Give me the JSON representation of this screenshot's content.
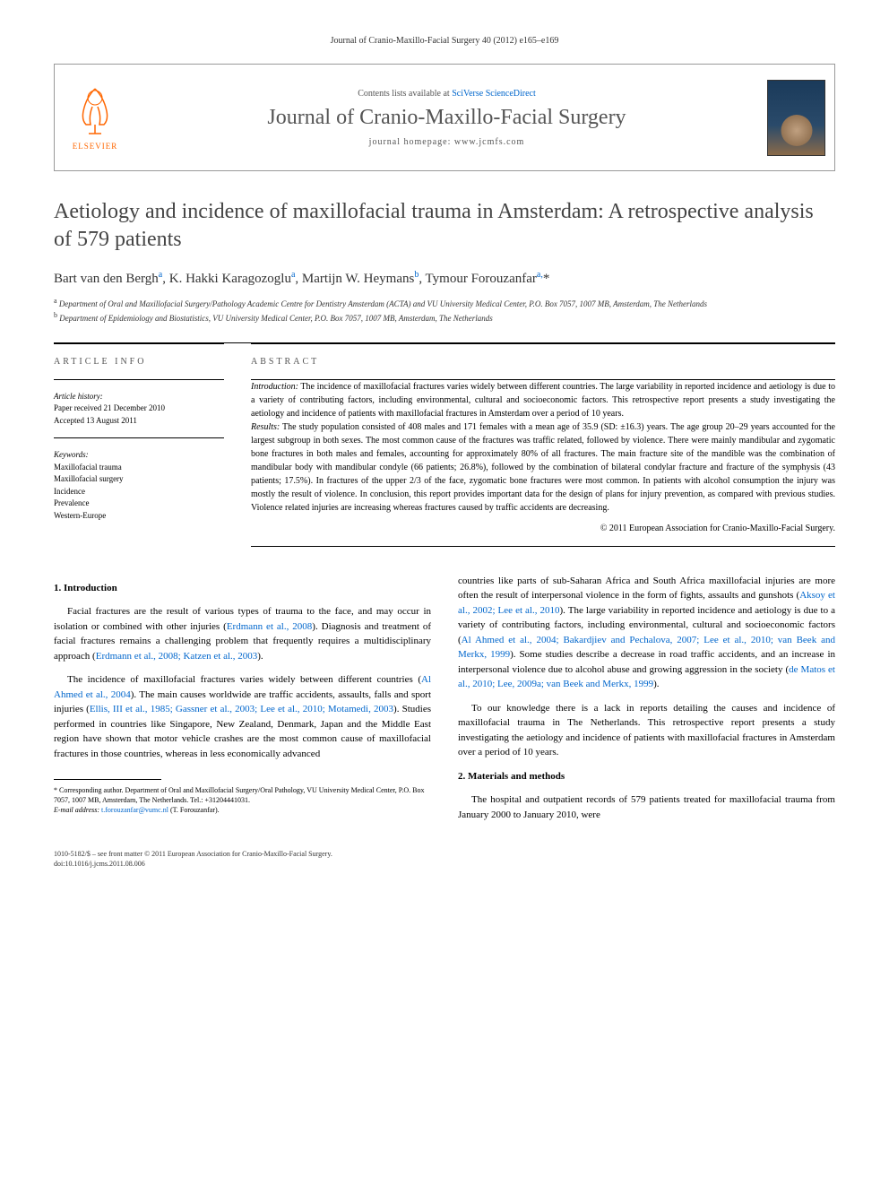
{
  "header_ref": "Journal of Cranio-Maxillo-Facial Surgery 40 (2012) e165–e169",
  "journal_box": {
    "contents_text": "Contents lists available at ",
    "contents_link": "SciVerse ScienceDirect",
    "journal_title": "Journal of Cranio-Maxillo-Facial Surgery",
    "homepage": "journal homepage: www.jcmfs.com",
    "elsevier_label": "ELSEVIER"
  },
  "article_title": "Aetiology and incidence of maxillofacial trauma in Amsterdam: A retrospective analysis of 579 patients",
  "authors_html": "Bart van den Bergh<sup>a</sup>, K. Hakki Karagozoglu<sup>a</sup>, Martijn W. Heymans<sup>b</sup>, Tymour Forouzanfar<sup>a,</sup><span class='star'>*</span>",
  "affiliations": {
    "a": "Department of Oral and Maxillofacial Surgery/Pathology Academic Centre for Dentistry Amsterdam (ACTA) and VU University Medical Center, P.O. Box 7057, 1007 MB, Amsterdam, The Netherlands",
    "b": "Department of Epidemiology and Biostatistics, VU University Medical Center, P.O. Box 7057, 1007 MB, Amsterdam, The Netherlands"
  },
  "info": {
    "heading": "ARTICLE INFO",
    "history_label": "Article history:",
    "received": "Paper received 21 December 2010",
    "accepted": "Accepted 13 August 2011",
    "keywords_label": "Keywords:",
    "keywords": [
      "Maxillofacial trauma",
      "Maxillofacial surgery",
      "Incidence",
      "Prevalence",
      "Western-Europe"
    ]
  },
  "abstract": {
    "heading": "ABSTRACT",
    "intro_label": "Introduction:",
    "intro": " The incidence of maxillofacial fractures varies widely between different countries. The large variability in reported incidence and aetiology is due to a variety of contributing factors, including environmental, cultural and socioeconomic factors. This retrospective report presents a study investigating the aetiology and incidence of patients with maxillofacial fractures in Amsterdam over a period of 10 years.",
    "results_label": "Results:",
    "results": " The study population consisted of 408 males and 171 females with a mean age of 35.9 (SD: ±16.3) years. The age group 20–29 years accounted for the largest subgroup in both sexes. The most common cause of the fractures was traffic related, followed by violence. There were mainly mandibular and zygomatic bone fractures in both males and females, accounting for approximately 80% of all fractures. The main fracture site of the mandible was the combination of mandibular body with mandibular condyle (66 patients; 26.8%), followed by the combination of bilateral condylar fracture and fracture of the symphysis (43 patients; 17.5%). In fractures of the upper 2/3 of the face, zygomatic bone fractures were most common. In patients with alcohol consumption the injury was mostly the result of violence. In conclusion, this report provides important data for the design of plans for injury prevention, as compared with previous studies. Violence related injuries are increasing whereas fractures caused by traffic accidents are decreasing.",
    "copyright": "© 2011 European Association for Cranio-Maxillo-Facial Surgery."
  },
  "body": {
    "intro_heading": "1. Introduction",
    "p1": "Facial fractures are the result of various types of trauma to the face, and may occur in isolation or combined with other injuries (",
    "p1_cite1": "Erdmann et al., 2008",
    "p1_b": "). Diagnosis and treatment of facial fractures remains a challenging problem that frequently requires a multidisciplinary approach (",
    "p1_cite2": "Erdmann et al., 2008; Katzen et al., 2003",
    "p1_c": ").",
    "p2": "The incidence of maxillofacial fractures varies widely between different countries (",
    "p2_cite1": "Al Ahmed et al., 2004",
    "p2_b": "). The main causes worldwide are traffic accidents, assaults, falls and sport injuries (",
    "p2_cite2": "Ellis, III et al., 1985; Gassner et al., 2003; Lee et al., 2010; Motamedi, 2003",
    "p2_c": "). Studies performed in countries like Singapore, New Zealand, Denmark, Japan and the Middle East region have shown that motor vehicle crashes are the most common cause of maxillofacial fractures in those countries, whereas in less economically advanced",
    "p3": "countries like parts of sub-Saharan Africa and South Africa maxillofacial injuries are more often the result of interpersonal violence in the form of fights, assaults and gunshots (",
    "p3_cite1": "Aksoy et al., 2002; Lee et al., 2010",
    "p3_b": "). The large variability in reported incidence and aetiology is due to a variety of contributing factors, including environmental, cultural and socioeconomic factors (",
    "p3_cite2": "Al Ahmed et al., 2004; Bakardjiev and Pechalova, 2007; Lee et al., 2010; van Beek and Merkx, 1999",
    "p3_c": "). Some studies describe a decrease in road traffic accidents, and an increase in interpersonal violence due to alcohol abuse and growing aggression in the society (",
    "p3_cite3": "de Matos et al., 2010; Lee, 2009a; van Beek and Merkx, 1999",
    "p3_d": ").",
    "p4": "To our knowledge there is a lack in reports detailing the causes and incidence of maxillofacial trauma in The Netherlands. This retrospective report presents a study investigating the aetiology and incidence of patients with maxillofacial fractures in Amsterdam over a period of 10 years.",
    "methods_heading": "2. Materials and methods",
    "p5": "The hospital and outpatient records of 579 patients treated for maxillofacial trauma from January 2000 to January 2010, were"
  },
  "footnote": {
    "corr_label": "* Corresponding author.",
    "corr_text": " Department of Oral and Maxillofacial Surgery/Oral Pathology, VU University Medical Center, P.O. Box 7057, 1007 MB, Amsterdam, The Netherlands. Tel.: +31204441031.",
    "email_label": "E-mail address:",
    "email": " t.forouzanfar@vumc.nl",
    "email_suffix": " (T. Forouzanfar)."
  },
  "footer": {
    "line1": "1010-5182/$ – see front matter © 2011 European Association for Cranio-Maxillo-Facial Surgery.",
    "line2": "doi:10.1016/j.jcms.2011.08.006"
  },
  "colors": {
    "link": "#0066cc",
    "elsevier": "#ff6600",
    "text": "#000000",
    "heading": "#444444"
  }
}
